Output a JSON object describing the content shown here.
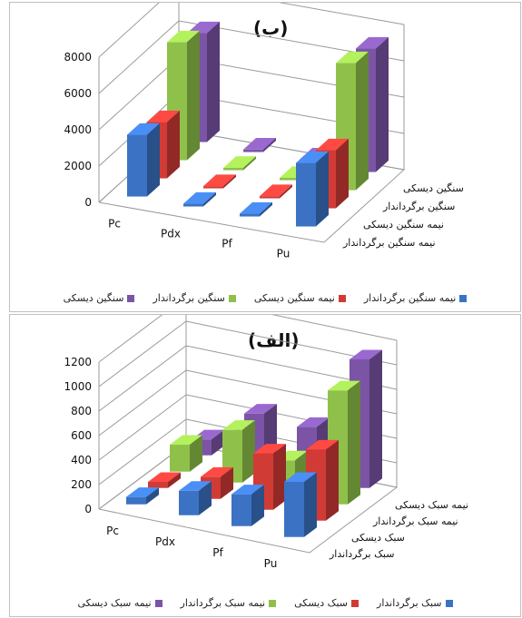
{
  "chart_data": [
    {
      "type": "bar",
      "title": "(ب)",
      "categories": [
        "Pc",
        "Pdx",
        "Pf",
        "Pu"
      ],
      "ylim": [
        0,
        8000
      ],
      "yticks": [
        "0",
        "2000",
        "4000",
        "6000",
        "8000"
      ],
      "series": [
        {
          "name": "نیمه سنگین برگرداندار",
          "color": "#3b72c4",
          "values": [
            3400,
            150,
            150,
            3500
          ]
        },
        {
          "name": "نیمه سنگین دیسکی",
          "color": "#d13b36",
          "values": [
            3100,
            120,
            120,
            3200
          ]
        },
        {
          "name": "سنگین برگرداندار",
          "color": "#8fc14a",
          "values": [
            6500,
            130,
            130,
            7000
          ]
        },
        {
          "name": "سنگین دیسکی",
          "color": "#7b54a6",
          "values": [
            6000,
            140,
            140,
            6800
          ]
        }
      ]
    },
    {
      "type": "bar",
      "title": "(الف)",
      "categories": [
        "Pc",
        "Pdx",
        "Pf",
        "Pu"
      ],
      "ylim": [
        0,
        1200
      ],
      "yticks": [
        "0",
        "200",
        "400",
        "600",
        "800",
        "1000",
        "1200"
      ],
      "series": [
        {
          "name": "سبک برگرداندار",
          "color": "#3b72c4",
          "values": [
            60,
            200,
            260,
            450
          ]
        },
        {
          "name": "سبک دیسکی",
          "color": "#d13b36",
          "values": [
            50,
            180,
            460,
            580
          ]
        },
        {
          "name": "نیمه سبک برگرداندار",
          "color": "#8fc14a",
          "values": [
            220,
            430,
            270,
            930
          ]
        },
        {
          "name": "نیمه سبک دیسکی",
          "color": "#7b54a6",
          "values": [
            130,
            430,
            410,
            1050
          ]
        }
      ]
    }
  ]
}
